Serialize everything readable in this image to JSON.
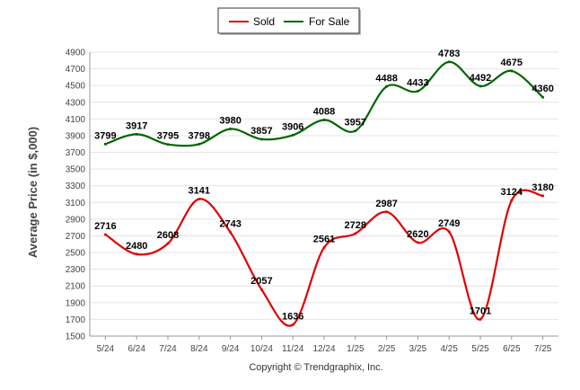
{
  "chart_data": {
    "type": "line",
    "categories": [
      "5/24",
      "6/24",
      "7/24",
      "8/24",
      "9/24",
      "10/24",
      "11/24",
      "12/24",
      "1/25",
      "2/25",
      "3/25",
      "4/25",
      "5/25",
      "6/25",
      "7/25"
    ],
    "series": [
      {
        "name": "Sold",
        "color": "#e00000",
        "values": [
          2716,
          2480,
          2608,
          3141,
          2743,
          2057,
          1636,
          2561,
          2728,
          2987,
          2620,
          2749,
          1701,
          3124,
          3180
        ]
      },
      {
        "name": "For Sale",
        "color": "#006600",
        "values": [
          3799,
          3917,
          3795,
          3798,
          3980,
          3857,
          3906,
          4088,
          3957,
          4488,
          4433,
          4783,
          4492,
          4675,
          4360
        ]
      }
    ],
    "ylabel": "Average Price (in $,000)",
    "xlabel": "",
    "ylim": [
      1500,
      4900
    ],
    "yticks": [
      1500,
      1700,
      1900,
      2100,
      2300,
      2500,
      2700,
      2900,
      3100,
      3300,
      3500,
      3700,
      3900,
      4100,
      4300,
      4500,
      4700,
      4900
    ],
    "legend_position": "top-center",
    "grid": true
  },
  "footer": {
    "copyright": "Copyright © Trendgraphix, Inc."
  }
}
